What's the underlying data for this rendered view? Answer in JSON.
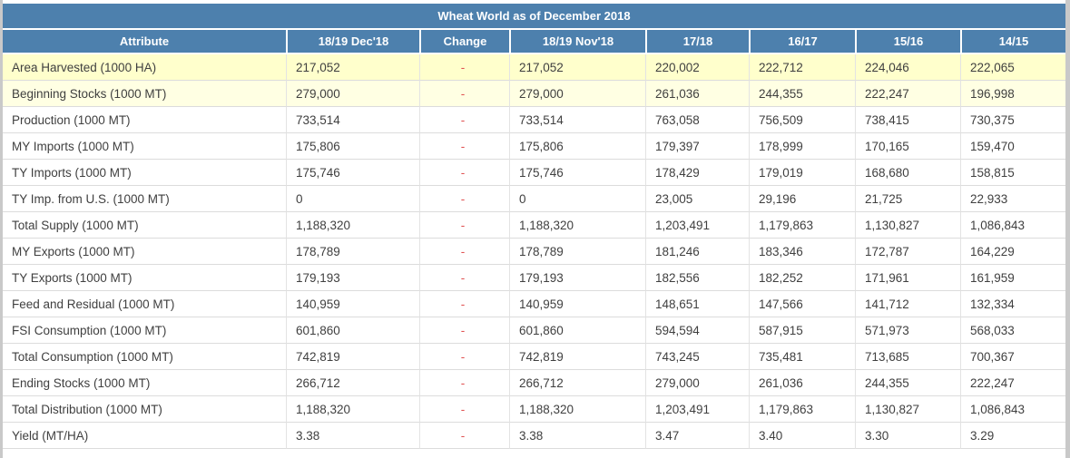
{
  "page": {
    "title": "Wheat World as of December 2018"
  },
  "table": {
    "columns": [
      "Attribute",
      "18/19 Dec'18",
      "Change",
      "18/19 Nov'18",
      "17/18",
      "16/17",
      "15/16",
      "14/15"
    ],
    "rows": [
      {
        "attribute": "Area Harvested (1000 HA)",
        "values": [
          "217,052",
          "-",
          "217,052",
          "220,002",
          "222,712",
          "224,046",
          "222,065"
        ],
        "highlight": true
      },
      {
        "attribute": "Beginning Stocks (1000 MT)",
        "values": [
          "279,000",
          "-",
          "279,000",
          "261,036",
          "244,355",
          "222,247",
          "196,998"
        ],
        "highlight": true
      },
      {
        "attribute": "Production (1000 MT)",
        "values": [
          "733,514",
          "-",
          "733,514",
          "763,058",
          "756,509",
          "738,415",
          "730,375"
        ],
        "highlight": false
      },
      {
        "attribute": "MY Imports (1000 MT)",
        "values": [
          "175,806",
          "-",
          "175,806",
          "179,397",
          "178,999",
          "170,165",
          "159,470"
        ],
        "highlight": false
      },
      {
        "attribute": "TY Imports (1000 MT)",
        "values": [
          "175,746",
          "-",
          "175,746",
          "178,429",
          "179,019",
          "168,680",
          "158,815"
        ],
        "highlight": false
      },
      {
        "attribute": "TY Imp. from U.S. (1000 MT)",
        "values": [
          "0",
          "-",
          "0",
          "23,005",
          "29,196",
          "21,725",
          "22,933"
        ],
        "highlight": false
      },
      {
        "attribute": "Total Supply (1000 MT)",
        "values": [
          "1,188,320",
          "-",
          "1,188,320",
          "1,203,491",
          "1,179,863",
          "1,130,827",
          "1,086,843"
        ],
        "highlight": false
      },
      {
        "attribute": "MY Exports (1000 MT)",
        "values": [
          "178,789",
          "-",
          "178,789",
          "181,246",
          "183,346",
          "172,787",
          "164,229"
        ],
        "highlight": false
      },
      {
        "attribute": "TY Exports (1000 MT)",
        "values": [
          "179,193",
          "-",
          "179,193",
          "182,556",
          "182,252",
          "171,961",
          "161,959"
        ],
        "highlight": false
      },
      {
        "attribute": "Feed and Residual (1000 MT)",
        "values": [
          "140,959",
          "-",
          "140,959",
          "148,651",
          "147,566",
          "141,712",
          "132,334"
        ],
        "highlight": false
      },
      {
        "attribute": "FSI Consumption (1000 MT)",
        "values": [
          "601,860",
          "-",
          "601,860",
          "594,594",
          "587,915",
          "571,973",
          "568,033"
        ],
        "highlight": false
      },
      {
        "attribute": "Total Consumption (1000 MT)",
        "values": [
          "742,819",
          "-",
          "742,819",
          "743,245",
          "735,481",
          "713,685",
          "700,367"
        ],
        "highlight": false
      },
      {
        "attribute": "Ending Stocks (1000 MT)",
        "values": [
          "266,712",
          "-",
          "266,712",
          "279,000",
          "261,036",
          "244,355",
          "222,247"
        ],
        "highlight": false
      },
      {
        "attribute": "Total Distribution (1000 MT)",
        "values": [
          "1,188,320",
          "-",
          "1,188,320",
          "1,203,491",
          "1,179,863",
          "1,130,827",
          "1,086,843"
        ],
        "highlight": false
      },
      {
        "attribute": "Yield (MT/HA)",
        "values": [
          "3.38",
          "-",
          "3.38",
          "3.47",
          "3.40",
          "3.30",
          "3.29"
        ],
        "highlight": false
      }
    ]
  },
  "colors": {
    "header_blue": "#4d80ad",
    "highlight_row_primary": "#ffffcc",
    "highlight_row_secondary": "#ffffe3",
    "change_dash_red": "#e05252",
    "page_edge_gray": "#c9c9c9"
  }
}
